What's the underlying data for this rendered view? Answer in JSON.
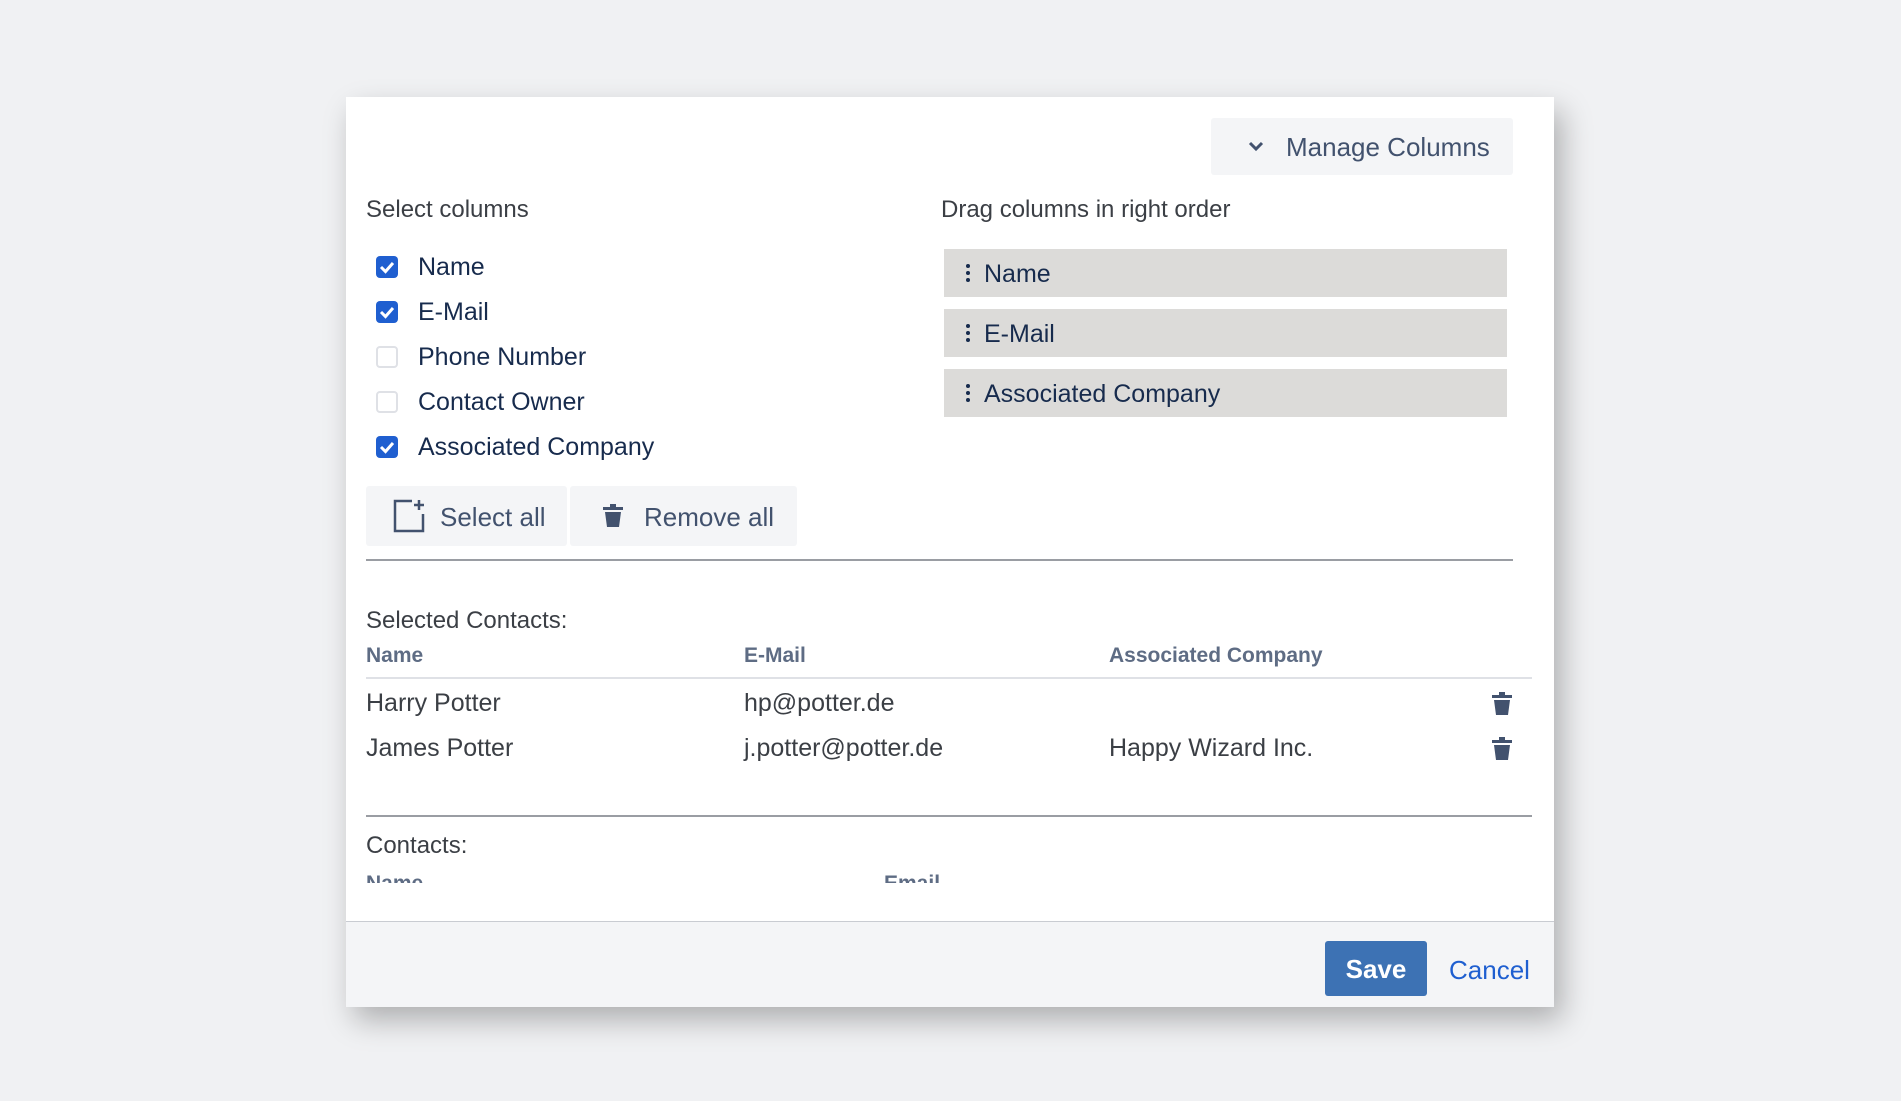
{
  "header": {
    "button": "Manage Columns"
  },
  "select": {
    "title": "Select columns",
    "options": [
      {
        "label": "Name",
        "checked": true
      },
      {
        "label": "E-Mail",
        "checked": true
      },
      {
        "label": "Phone Number",
        "checked": false
      },
      {
        "label": "Contact Owner",
        "checked": false
      },
      {
        "label": "Associated Company",
        "checked": true
      }
    ]
  },
  "order": {
    "title": "Drag columns in right order",
    "items": [
      "Name",
      "E-Mail",
      "Associated Company"
    ]
  },
  "actions": {
    "select_all": "Select all",
    "remove_all": "Remove all"
  },
  "selected": {
    "title": "Selected Contacts:",
    "columns": [
      "Name",
      "E-Mail",
      "Associated Company"
    ],
    "rows": [
      [
        "Harry Potter",
        "hp@potter.de",
        ""
      ],
      [
        "James Potter",
        "j.potter@potter.de",
        "Happy Wizard Inc."
      ]
    ]
  },
  "contacts": {
    "title": "Contacts:",
    "columns": [
      "Name",
      "Email"
    ]
  },
  "footer": {
    "save": "Save",
    "cancel": "Cancel"
  }
}
